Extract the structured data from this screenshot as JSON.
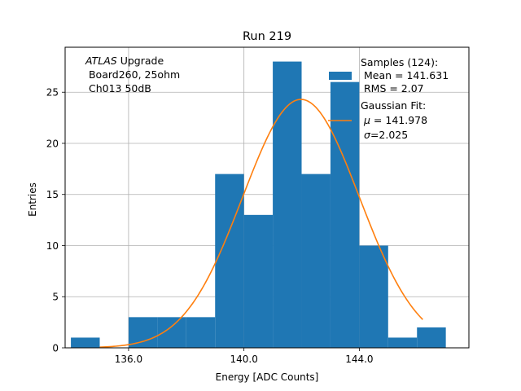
{
  "chart_data": {
    "type": "bar",
    "title": "Run 219",
    "xlabel": "Energy [ADC Counts]",
    "ylabel": "Entries",
    "xlim": [
      133.8,
      147.8
    ],
    "ylim": [
      0,
      29.4
    ],
    "xticks": [
      136.0,
      140.0,
      144.0
    ],
    "xtick_labels": [
      "136.0",
      "140.0",
      "144.0"
    ],
    "yticks": [
      0,
      5,
      10,
      15,
      20,
      25
    ],
    "ytick_labels": [
      "0",
      "5",
      "10",
      "15",
      "20",
      "25"
    ],
    "grid": true,
    "bins": [
      {
        "x0": 134.0,
        "x1": 135.0,
        "count": 1
      },
      {
        "x0": 135.0,
        "x1": 136.0,
        "count": 0
      },
      {
        "x0": 136.0,
        "x1": 137.0,
        "count": 3
      },
      {
        "x0": 137.0,
        "x1": 138.0,
        "count": 3
      },
      {
        "x0": 138.0,
        "x1": 139.0,
        "count": 3
      },
      {
        "x0": 139.0,
        "x1": 140.0,
        "count": 17
      },
      {
        "x0": 140.0,
        "x1": 141.0,
        "count": 13
      },
      {
        "x0": 141.0,
        "x1": 142.0,
        "count": 28
      },
      {
        "x0": 142.0,
        "x1": 143.0,
        "count": 17
      },
      {
        "x0": 143.0,
        "x1": 144.0,
        "count": 26
      },
      {
        "x0": 144.0,
        "x1": 145.0,
        "count": 10
      },
      {
        "x0": 145.0,
        "x1": 146.0,
        "count": 1
      },
      {
        "x0": 146.0,
        "x1": 147.0,
        "count": 2
      }
    ],
    "fit": {
      "mu": 141.978,
      "sigma": 2.025,
      "amplitude": 24.3,
      "x_range": [
        135.0,
        146.2
      ]
    },
    "legend_placement": "top-right",
    "legend": {
      "samples_line1": "Samples (124):",
      "samples_line2": " Mean = 141.631",
      "samples_line3": " RMS = 2.07",
      "fit_line1": "Gaussian Fit:",
      "fit_line2_symbol": "μ",
      "fit_line2_rest": " = 141.978",
      "fit_line3_symbol": "σ",
      "fit_line3_rest": "=2.025"
    },
    "annotation": {
      "line1_italic": "ATLAS",
      "line1_rest": " Upgrade",
      "line2": " Board260, 25ohm",
      "line3": " Ch013 50dB"
    },
    "colors": {
      "bars": "#1f77b4",
      "fit": "#ff7f0e",
      "grid": "#b0b0b0"
    }
  }
}
